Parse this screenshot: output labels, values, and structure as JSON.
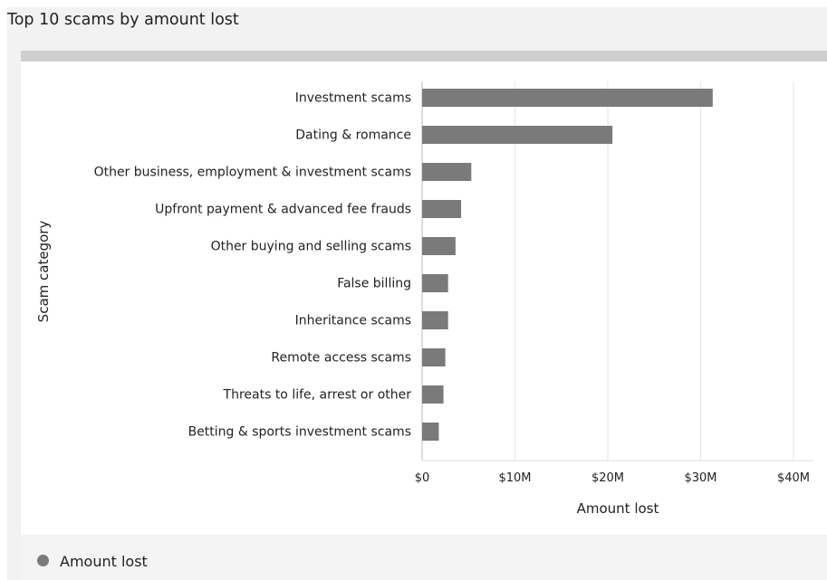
{
  "card": {
    "title": "Top 10 scams by amount lost"
  },
  "legend": {
    "label": "Amount lost",
    "color": "#7a7a7a"
  },
  "chart_data": {
    "type": "bar",
    "orientation": "horizontal",
    "title": "Top 10 scams by amount lost",
    "xlabel": "Amount lost",
    "ylabel": "Scam category",
    "xlim": [
      0,
      40000000
    ],
    "xticks": [
      {
        "value": 0,
        "label": "$0"
      },
      {
        "value": 10000000,
        "label": "$10M"
      },
      {
        "value": 20000000,
        "label": "$20M"
      },
      {
        "value": 30000000,
        "label": "$30M"
      },
      {
        "value": 40000000,
        "label": "$40M"
      }
    ],
    "grid": true,
    "legend_position": "bottom-left",
    "bar_color": "#7a7a7a",
    "categories": [
      "Investment scams",
      "Dating & romance",
      "Other business, employment & investment scams",
      "Upfront payment & advanced fee frauds",
      "Other buying and selling scams",
      "False billing",
      "Inheritance scams",
      "Remote access scams",
      "Threats to life, arrest or other",
      "Betting & sports investment scams"
    ],
    "series": [
      {
        "name": "Amount lost",
        "values": [
          31300000,
          20500000,
          5300000,
          4200000,
          3600000,
          2800000,
          2800000,
          2500000,
          2300000,
          1800000
        ]
      }
    ]
  }
}
